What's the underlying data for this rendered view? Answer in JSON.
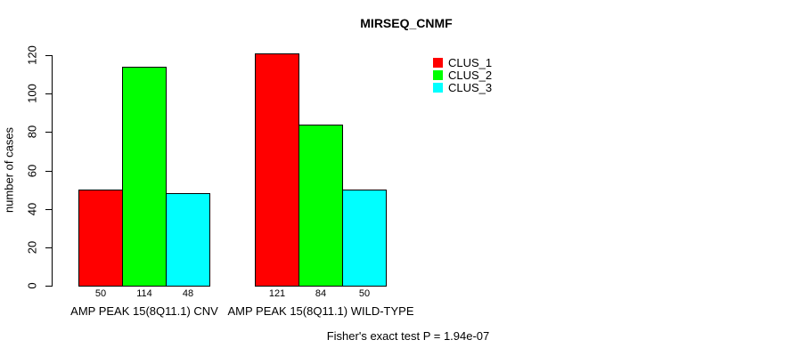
{
  "chart_data": {
    "type": "bar",
    "title": "MIRSEQ_CNMF",
    "ylabel": "number of cases",
    "xlabel": "",
    "ylim": [
      0,
      120
    ],
    "yticks": [
      0,
      20,
      40,
      60,
      80,
      100,
      120
    ],
    "grid": false,
    "legend_position": "top-right",
    "bar_value_labels_shown": true,
    "categories": [
      "AMP PEAK 15(8Q11.1) CNV",
      "AMP PEAK 15(8Q11.1) WILD-TYPE"
    ],
    "series": [
      {
        "name": "CLUS_1",
        "color": "#ff0000",
        "values": [
          50,
          121
        ]
      },
      {
        "name": "CLUS_2",
        "color": "#00ff00",
        "values": [
          114,
          84
        ]
      },
      {
        "name": "CLUS_3",
        "color": "#00ffff",
        "values": [
          48,
          50
        ]
      }
    ]
  },
  "footer": {
    "note": "Fisher's exact test P = 1.94e-07"
  },
  "colors": {
    "background": "#ffffff",
    "axis": "#000000",
    "text": "#000000",
    "bar_border": "#000000"
  }
}
